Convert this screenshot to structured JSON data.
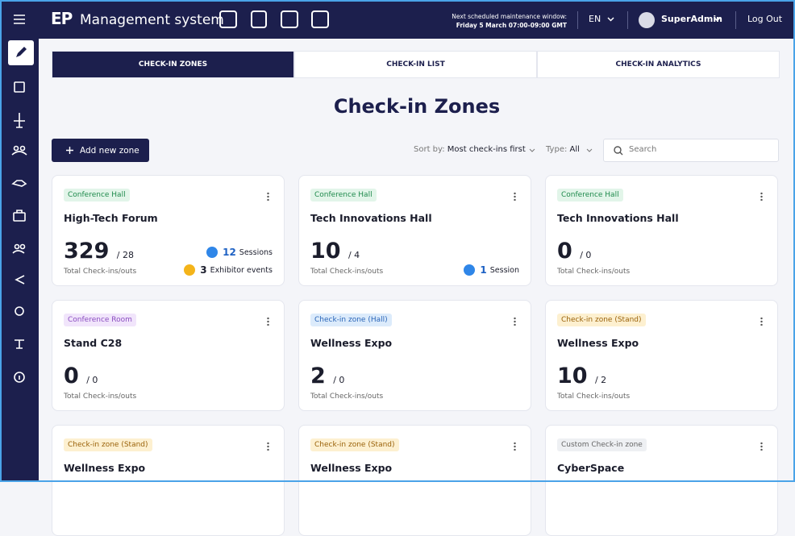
{
  "header": {
    "logo": "EP",
    "title": "Management system",
    "maintenance_label": "Next scheduled maintenance window:",
    "maintenance_time": "Friday 5 March 07:00-09:00 GMT",
    "language": "EN",
    "user": "SuperAdmin",
    "logout": "Log Out"
  },
  "tabs": [
    "CHECK-IN ZONES",
    "CHECK-IN LIST",
    "CHECK-IN ANALYTICS"
  ],
  "active_tab": 0,
  "page_title": "Check-in Zones",
  "toolbar": {
    "add_button": "Add new zone",
    "sort_label": "Sort by:",
    "sort_value": "Most check-ins first",
    "type_label": "Type:",
    "type_value": "All",
    "search_placeholder": "Search"
  },
  "cards": [
    {
      "tag": "Conference Hall",
      "tag_color": "green",
      "name": "High-Tech Forum",
      "count": "329",
      "total": "/ 28",
      "count_label": "Total Check-ins/outs",
      "stats": [
        {
          "value": "12",
          "label": "Sessions",
          "kind": "session"
        },
        {
          "value": "3",
          "label": "Exhibitor events",
          "kind": "exhibitor"
        }
      ]
    },
    {
      "tag": "Conference Hall",
      "tag_color": "green",
      "name": "Tech Innovations Hall",
      "count": "10",
      "total": "/ 4",
      "count_label": "Total Check-ins/outs",
      "stats": [
        {
          "value": "1",
          "label": "Session",
          "kind": "session"
        }
      ]
    },
    {
      "tag": "Conference Hall",
      "tag_color": "green",
      "name": "Tech Innovations Hall",
      "count": "0",
      "total": "/ 0",
      "count_label": "Total Check-ins/outs",
      "stats": []
    },
    {
      "tag": "Conference Room",
      "tag_color": "purple",
      "name": "Stand C28",
      "count": "0",
      "total": "/ 0",
      "count_label": "Total Check-ins/outs",
      "stats": []
    },
    {
      "tag": "Check-in zone (Hall)",
      "tag_color": "blue",
      "name": "Wellness Expo",
      "count": "2",
      "total": "/ 0",
      "count_label": "Total Check-ins/outs",
      "stats": []
    },
    {
      "tag": "Check-in zone (Stand)",
      "tag_color": "yellow",
      "name": "Wellness Expo",
      "count": "10",
      "total": "/ 2",
      "count_label": "Total Check-ins/outs",
      "stats": []
    },
    {
      "tag": "Check-in zone (Stand)",
      "tag_color": "yellow",
      "name": "Wellness Expo"
    },
    {
      "tag": "Check-in zone (Stand)",
      "tag_color": "yellow",
      "name": "Wellness Expo"
    },
    {
      "tag": "Custom Check-in zone",
      "tag_color": "gray",
      "name": "CyberSpace"
    }
  ]
}
